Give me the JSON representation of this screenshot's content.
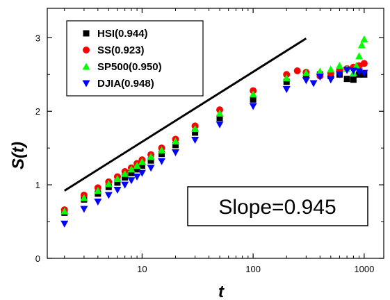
{
  "chart_data": {
    "type": "scatter",
    "title": "",
    "xlabel": "t",
    "ylabel": "S(t)",
    "xscale": "log",
    "xlim": [
      1.4,
      1500
    ],
    "ylim": [
      0,
      3.4
    ],
    "xticks": [
      {
        "value": 10,
        "label": "10"
      },
      {
        "value": 100,
        "label": "100"
      },
      {
        "value": 1000,
        "label": "1000"
      }
    ],
    "yticks": [
      {
        "value": 0,
        "label": "0"
      },
      {
        "value": 1,
        "label": "1"
      },
      {
        "value": 2,
        "label": "2"
      },
      {
        "value": 3,
        "label": "3"
      }
    ],
    "grid": false,
    "legend_position": "top-left",
    "annotation": "Slope=0.945",
    "reference_line": {
      "x": [
        2,
        300
      ],
      "y": [
        0.92,
        2.99
      ],
      "color": "#000000"
    },
    "series": [
      {
        "name": "HSI(0.944)",
        "marker": "square",
        "color": "#000000",
        "x": [
          2,
          3,
          4,
          5,
          6,
          7,
          8,
          9,
          10,
          12,
          15,
          20,
          30,
          50,
          100,
          200,
          300,
          400,
          500,
          600,
          700,
          800,
          900,
          1000
        ],
        "y": [
          0.62,
          0.8,
          0.88,
          0.97,
          1.03,
          1.1,
          1.16,
          1.21,
          1.26,
          1.33,
          1.42,
          1.54,
          1.71,
          1.91,
          2.16,
          2.4,
          2.48,
          2.5,
          2.48,
          2.5,
          2.44,
          2.43,
          2.5,
          2.5
        ]
      },
      {
        "name": "SS(0.923)",
        "marker": "circle",
        "color": "#ff0000",
        "x": [
          2,
          3,
          4,
          5,
          6,
          7,
          8,
          9,
          10,
          12,
          15,
          20,
          30,
          50,
          100,
          200,
          250,
          300,
          400,
          500,
          600,
          700,
          800,
          900,
          1000
        ],
        "y": [
          0.66,
          0.86,
          0.96,
          1.04,
          1.11,
          1.18,
          1.23,
          1.29,
          1.34,
          1.41,
          1.5,
          1.62,
          1.8,
          2.02,
          2.28,
          2.5,
          2.55,
          2.53,
          2.48,
          2.52,
          2.56,
          2.58,
          2.6,
          2.62,
          2.65
        ]
      },
      {
        "name": "SP500(0.950)",
        "marker": "triangle-up",
        "color": "#00ff00",
        "x": [
          2,
          3,
          4,
          5,
          6,
          7,
          8,
          9,
          10,
          12,
          15,
          20,
          30,
          50,
          100,
          200,
          300,
          400,
          500,
          600,
          700,
          800,
          850,
          900,
          950,
          1000
        ],
        "y": [
          0.64,
          0.82,
          0.92,
          1.01,
          1.08,
          1.15,
          1.21,
          1.26,
          1.31,
          1.38,
          1.47,
          1.59,
          1.76,
          1.97,
          2.23,
          2.45,
          2.52,
          2.54,
          2.57,
          2.62,
          2.58,
          2.52,
          2.62,
          2.75,
          2.9,
          2.98
        ]
      },
      {
        "name": "DJIA(0.948)",
        "marker": "triangle-down",
        "color": "#0000ff",
        "x": [
          2,
          3,
          4,
          5,
          6,
          7,
          8,
          9,
          10,
          12,
          15,
          20,
          30,
          50,
          100,
          200,
          300,
          350,
          400,
          500,
          600,
          700,
          800,
          900,
          1000
        ],
        "y": [
          0.47,
          0.67,
          0.77,
          0.86,
          0.93,
          1.0,
          1.06,
          1.11,
          1.16,
          1.23,
          1.32,
          1.44,
          1.61,
          1.82,
          2.07,
          2.3,
          2.42,
          2.38,
          2.47,
          2.43,
          2.5,
          2.56,
          2.55,
          2.54,
          2.52
        ]
      }
    ]
  }
}
